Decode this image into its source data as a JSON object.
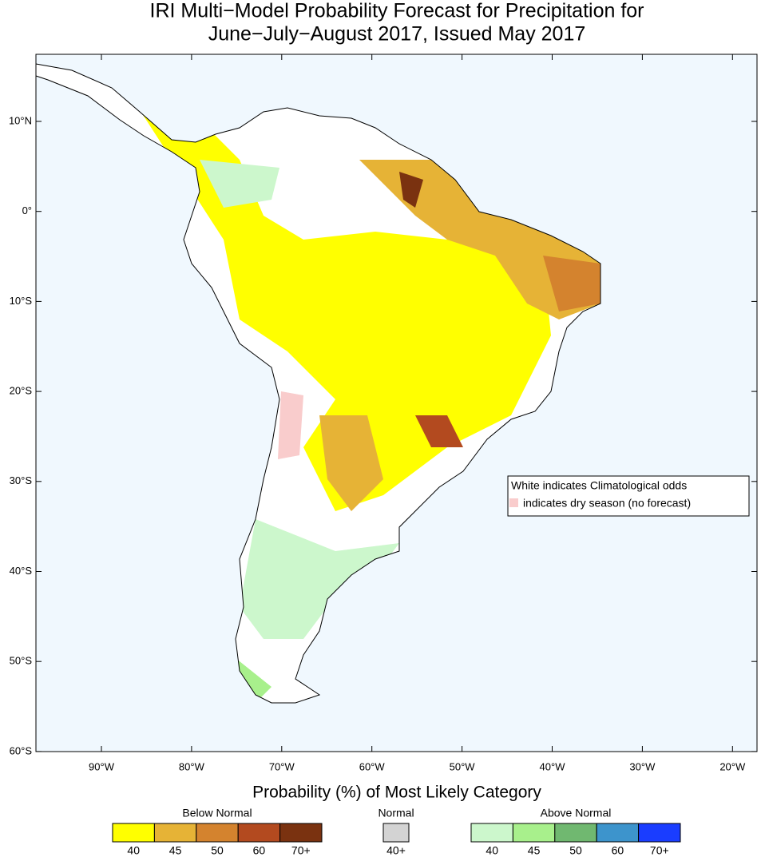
{
  "title": [
    "IRI Multi−Model Probability Forecast for Precipitation for",
    "June−July−August 2017, Issued May 2017"
  ],
  "map": {
    "lat_labels": [
      "10°N",
      "0°",
      "10°S",
      "20°S",
      "30°S",
      "40°S",
      "50°S",
      "60°S"
    ],
    "lon_labels": [
      "90°W",
      "80°W",
      "70°W",
      "60°W",
      "50°W",
      "40°W",
      "30°W",
      "20°W"
    ],
    "ocean_color": "#f0f8fe"
  },
  "note": [
    "White indicates Climatological odds",
    "indicates dry season (no forecast)"
  ],
  "dry_color": "#f9cccc",
  "legend": {
    "title": "Probability (%) of Most Likely Category",
    "groups": [
      {
        "name": "Below Normal",
        "colors": [
          "#ffff00",
          "#e6b336",
          "#d4832e",
          "#b34a1f",
          "#7a3210"
        ],
        "labels": [
          "40",
          "45",
          "50",
          "60",
          "70+"
        ]
      },
      {
        "name": "Normal",
        "colors": [
          "#d3d3d3"
        ],
        "labels": [
          "40+"
        ]
      },
      {
        "name": "Above Normal",
        "colors": [
          "#ccf7cc",
          "#a8f08c",
          "#70b870",
          "#3d94cc",
          "#1a3dff"
        ],
        "labels": [
          "40",
          "45",
          "50",
          "60",
          "70+"
        ]
      }
    ]
  }
}
